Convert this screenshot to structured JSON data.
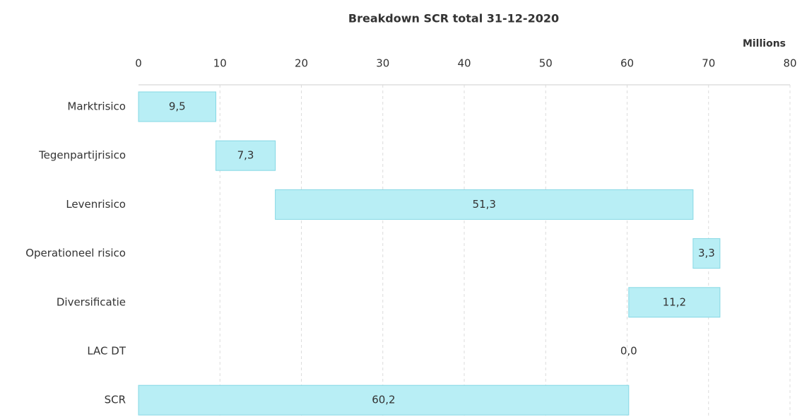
{
  "chart_data": {
    "type": "waterfall",
    "title": "Breakdown SCR total 31-12-2020",
    "x_unit_label": "Millions",
    "categories": [
      "Marktrisico",
      "Tegenpartijrisico",
      "Levenrisico",
      "Operationeel risico",
      "Diversificatie",
      "LAC DT",
      "SCR"
    ],
    "values": [
      9.5,
      7.3,
      51.3,
      3.3,
      -11.2,
      0.0,
      60.2
    ],
    "value_labels": [
      "9,5",
      "7,3",
      "51,3",
      "3,3",
      "11,2",
      "0,0",
      "60,2"
    ],
    "measures": [
      "relative",
      "relative",
      "relative",
      "relative",
      "relative",
      "relative",
      "total"
    ],
    "color": "#b8eef5",
    "edge_color": "#86d8e4",
    "xlim": [
      0,
      80
    ],
    "xticks": [
      0,
      10,
      20,
      30,
      40,
      50,
      60,
      70,
      80
    ],
    "grid": true
  }
}
